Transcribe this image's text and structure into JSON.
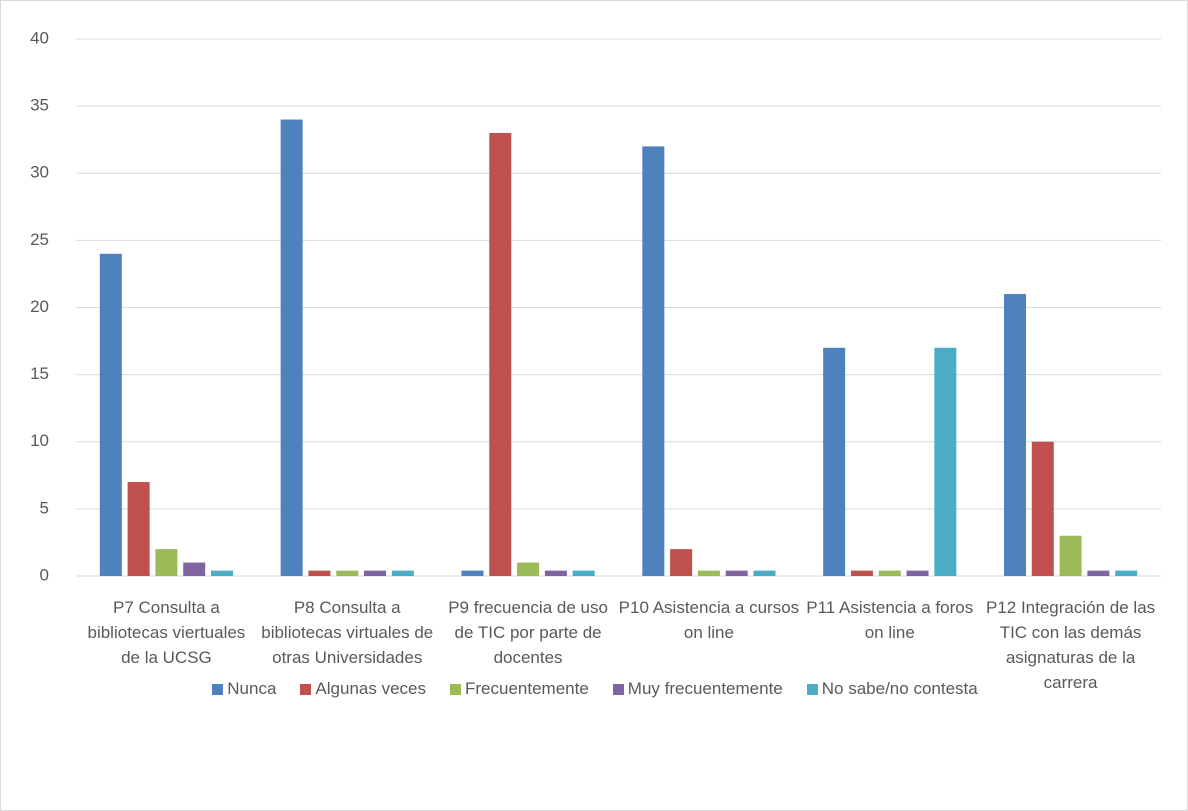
{
  "chart_data": {
    "type": "bar",
    "categories": [
      "P7 Consulta a bibliotecas viertuales de la UCSG",
      "P8 Consulta a bibliotecas virtuales de otras Universidades",
      "P9 frecuencia de uso de TIC por parte de docentes",
      "P10 Asistencia a cursos on line",
      "P11 Asistencia a foros on line",
      "P12 Integración de las TIC con las demás asignaturas de la carrera"
    ],
    "series": [
      {
        "name": "Nunca",
        "color": "#4f81bd",
        "values": [
          24,
          34,
          0.4,
          32,
          17,
          21
        ]
      },
      {
        "name": "Algunas veces",
        "color": "#c0504d",
        "values": [
          7,
          0.4,
          33,
          2,
          0.4,
          10
        ]
      },
      {
        "name": "Frecuentemente",
        "color": "#9bbb59",
        "values": [
          2,
          0.4,
          1,
          0.4,
          0.4,
          3
        ]
      },
      {
        "name": "Muy frecuentemente",
        "color": "#8064a2",
        "values": [
          1,
          0.4,
          0.4,
          0.4,
          0.4,
          0.4
        ]
      },
      {
        "name": "No sabe/no contesta",
        "color": "#4bacc6",
        "values": [
          0.4,
          0.4,
          0.4,
          0.4,
          17,
          0.4
        ]
      }
    ],
    "ylim": [
      0,
      40
    ],
    "yticks": [
      0,
      5,
      10,
      15,
      20,
      25,
      30,
      35,
      40
    ],
    "grid": true,
    "legend": "bottom"
  }
}
